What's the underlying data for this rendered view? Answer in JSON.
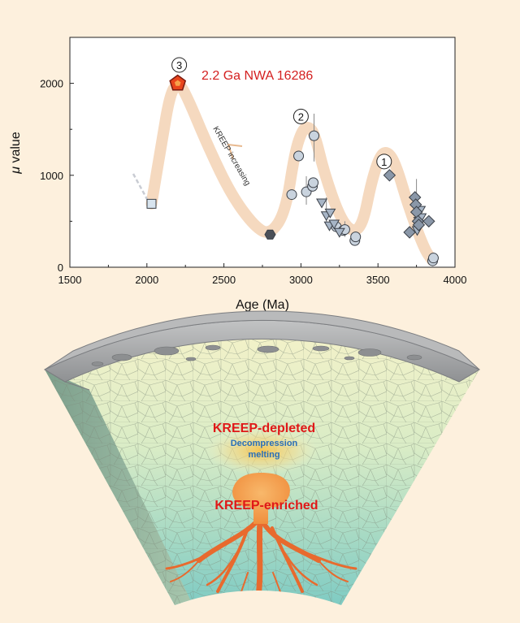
{
  "chart_data": {
    "type": "scatter",
    "xlabel": "Age (Ma)",
    "ylabel_symbol": "μ",
    "ylabel_text": " value",
    "xlim": [
      1500,
      4000
    ],
    "ylim": [
      0,
      2500
    ],
    "x_ticks": [
      1500,
      2000,
      2500,
      3000,
      3500,
      4000
    ],
    "y_ticks": [
      0,
      1000,
      2000
    ],
    "grid": false,
    "colors": {
      "trend_band": "#f5d9bf",
      "highlight_fill": "#e8451c",
      "highlight_stroke": "#7a1a10",
      "highlight_label": "#d42020",
      "circle_fill": "#c9d3de",
      "triangle_fill": "#a7b5c6",
      "diamond_fill": "#8a97a8",
      "hexagon_fill": "#4b5058",
      "square_fill": "#d8e4ee",
      "marker_stroke": "#3b4048"
    },
    "highlight": {
      "label": "2.2 Ga NWA 16286",
      "point": {
        "x": 2200,
        "y": 2000
      },
      "marker": "pentagon"
    },
    "trend_annotation": "KREEP increasing",
    "episode_labels": [
      {
        "text": "3",
        "x": 2210,
        "y": 2200
      },
      {
        "text": "2",
        "x": 3000,
        "y": 1640
      },
      {
        "text": "1",
        "x": 3540,
        "y": 1150
      }
    ],
    "trend_curve": [
      [
        2030,
        690
      ],
      [
        2100,
        1400
      ],
      [
        2150,
        1880
      ],
      [
        2200,
        2010
      ],
      [
        2250,
        1900
      ],
      [
        2400,
        1300
      ],
      [
        2550,
        780
      ],
      [
        2700,
        440
      ],
      [
        2800,
        350
      ],
      [
        2900,
        600
      ],
      [
        2960,
        1250
      ],
      [
        3010,
        1500
      ],
      [
        3050,
        1530
      ],
      [
        3090,
        1450
      ],
      [
        3150,
        1030
      ],
      [
        3250,
        550
      ],
      [
        3330,
        380
      ],
      [
        3400,
        450
      ],
      [
        3460,
        950
      ],
      [
        3520,
        1240
      ],
      [
        3570,
        1250
      ],
      [
        3620,
        1100
      ],
      [
        3700,
        650
      ],
      [
        3800,
        200
      ],
      [
        3850,
        80
      ]
    ],
    "series": [
      {
        "marker": "square",
        "points": [
          [
            2030,
            690
          ]
        ]
      },
      {
        "marker": "hexagon",
        "points": [
          [
            2800,
            355
          ]
        ]
      },
      {
        "marker": "circle",
        "points": [
          [
            2940,
            790
          ],
          [
            2985,
            1210
          ],
          [
            3035,
            820
          ],
          [
            3075,
            880
          ],
          [
            3080,
            920
          ],
          [
            3085,
            1430
          ],
          [
            3230,
            440
          ],
          [
            3275,
            400
          ],
          [
            3285,
            410
          ],
          [
            3350,
            290
          ],
          [
            3355,
            330
          ],
          [
            3855,
            70
          ],
          [
            3860,
            100
          ]
        ]
      },
      {
        "marker": "triangle",
        "points": [
          [
            3135,
            720
          ],
          [
            3165,
            580
          ],
          [
            3185,
            470
          ],
          [
            3190,
            610
          ],
          [
            3215,
            490
          ],
          [
            3250,
            400
          ],
          [
            3755,
            420
          ],
          [
            3765,
            520
          ],
          [
            3775,
            640
          ],
          [
            3780,
            560
          ]
        ]
      },
      {
        "marker": "diamond",
        "points": [
          [
            3575,
            1000
          ],
          [
            3705,
            380
          ],
          [
            3740,
            760
          ],
          [
            3745,
            680
          ],
          [
            3750,
            600
          ],
          [
            3760,
            500
          ],
          [
            3765,
            460
          ],
          [
            3830,
            500
          ]
        ]
      }
    ],
    "error_bars": [
      {
        "x": 3085,
        "y0": 1150,
        "y1": 1670
      },
      {
        "x": 3035,
        "y0": 680,
        "y1": 990
      },
      {
        "x": 3165,
        "y0": 450,
        "y1": 760
      },
      {
        "x": 3285,
        "y0": 330,
        "y1": 500
      },
      {
        "x": 3750,
        "y0": 380,
        "y1": 960
      }
    ]
  },
  "moon_section": {
    "label_depleted": "KREEP-depleted",
    "label_decompression": "Decompression\nmelting",
    "label_enriched": "KREEP-enriched",
    "colors": {
      "crust": "#a6a7a8",
      "crust_dark": "#8c8e90",
      "mantle_upper": "#f3efc4",
      "mantle_lower": "#9fd8cf",
      "mantle_side": "#7fa89a",
      "plume": "#f4a35a",
      "roots": "#e86a2e",
      "label_red": "#e01818",
      "label_blue": "#2a6fb8"
    }
  }
}
